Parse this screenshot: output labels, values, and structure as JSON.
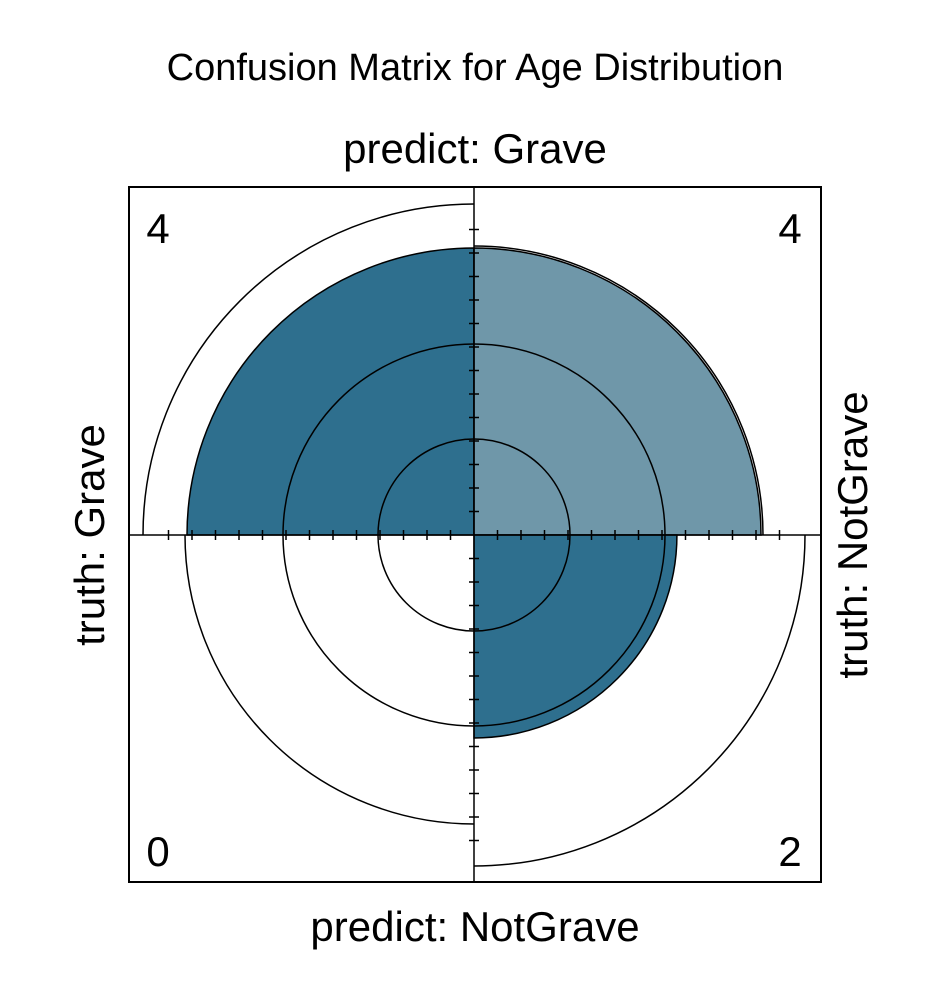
{
  "chart_data": {
    "type": "fourfold",
    "title": "Confusion Matrix for Age Distribution",
    "column_labels": {
      "top": "predict: Grave",
      "bottom": "predict: NotGrave"
    },
    "row_labels": {
      "left": "truth: Grave",
      "right": "truth: NotGrave"
    },
    "cells": [
      {
        "quadrant": "top-left",
        "truth": "Grave",
        "predict": "Grave",
        "count": 4,
        "label": "4",
        "color": "#2e6f8e"
      },
      {
        "quadrant": "top-right",
        "truth": "NotGrave",
        "predict": "Grave",
        "count": 4,
        "label": "4",
        "color": "#6f97a9"
      },
      {
        "quadrant": "bottom-left",
        "truth": "Grave",
        "predict": "NotGrave",
        "count": 0,
        "label": "0",
        "color": "#6f97a9"
      },
      {
        "quadrant": "bottom-right",
        "truth": "NotGrave",
        "predict": "NotGrave",
        "count": 2,
        "label": "2",
        "color": "#2e6f8e"
      }
    ],
    "colors": {
      "diagonal": "#2e6f8e",
      "off_diagonal": "#6f97a9",
      "frame": "#000000",
      "background": "#ffffff"
    }
  }
}
